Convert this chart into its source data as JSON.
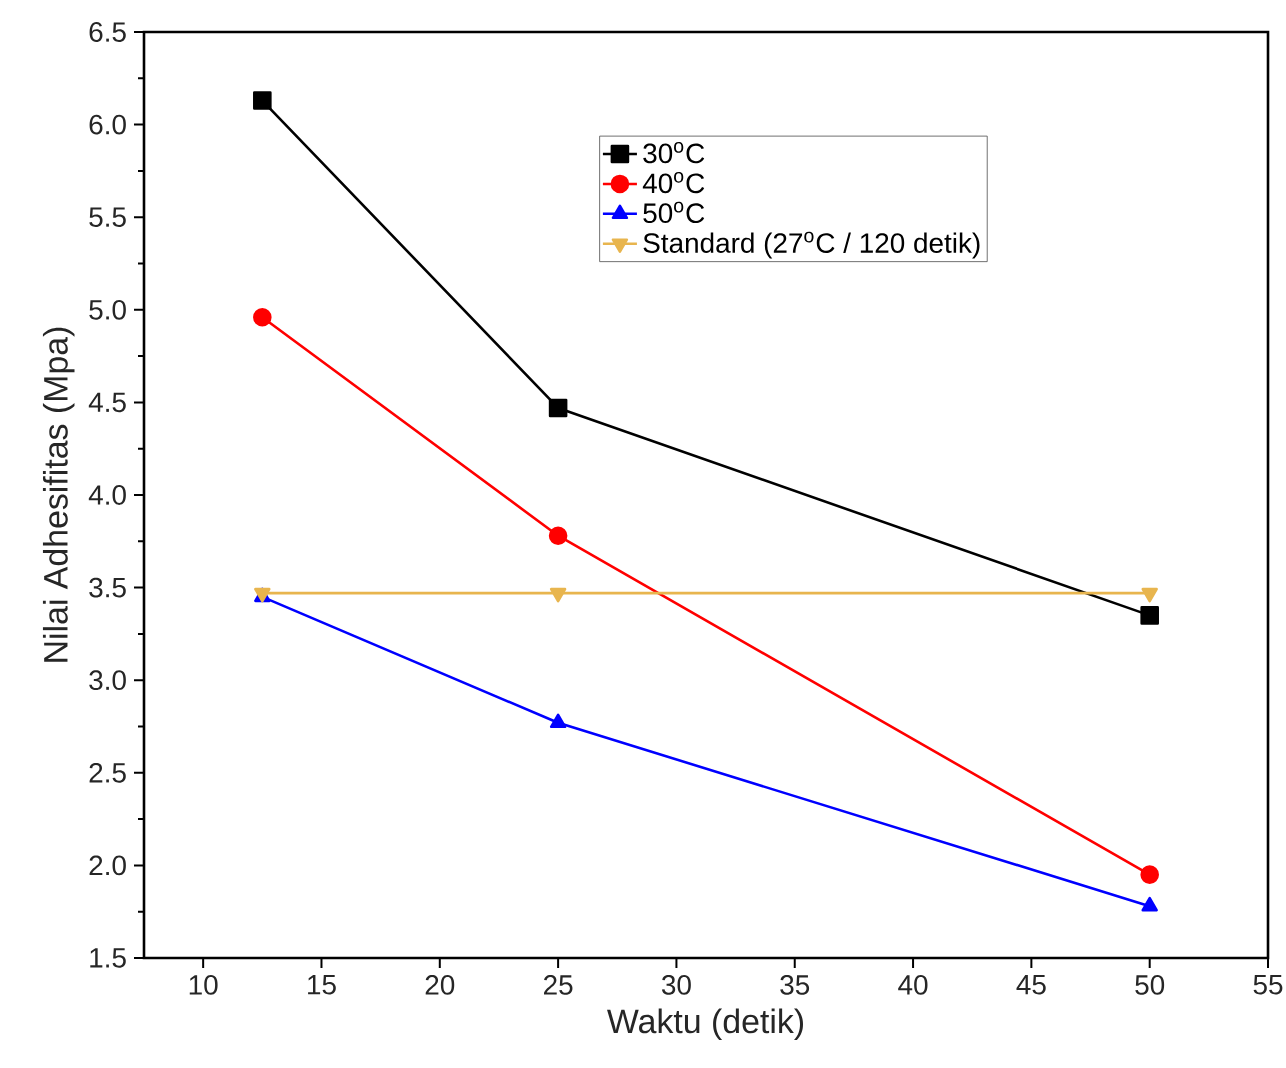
{
  "chart_data": {
    "type": "line",
    "xlabel": "Waktu (detik)",
    "ylabel": "Nilai Adhesifitas (Mpa)",
    "x": [
      12.5,
      25,
      50
    ],
    "series": [
      {
        "name": "30$^{o}$C",
        "color": "#000000",
        "marker": "square",
        "values": [
          6.13,
          4.47,
          3.35
        ]
      },
      {
        "name": "40$^{o}$C",
        "color": "#ff0000",
        "marker": "circle",
        "values": [
          4.96,
          3.78,
          1.95
        ]
      },
      {
        "name": "50$^{o}$C",
        "color": "#0000ff",
        "marker": "triangle",
        "values": [
          3.45,
          2.77,
          1.78
        ]
      },
      {
        "name": "Standard (27$^{o}$C / 120 detik)",
        "color": "#e8b54e",
        "marker": "triangle-down",
        "values": [
          3.47,
          3.47,
          3.47
        ]
      }
    ],
    "xlim": [
      7.5,
      55
    ],
    "ylim": [
      1.5,
      6.5
    ],
    "xticks": [
      10,
      15,
      20,
      25,
      30,
      35,
      40,
      45,
      50,
      55
    ],
    "yticks": [
      1.5,
      {
        "value": 2,
        "label": "2.0"
      },
      2.5,
      {
        "value": 3,
        "label": "3.0"
      },
      3.5,
      {
        "value": 4,
        "label": "4.0"
      },
      4.5,
      {
        "value": 5,
        "label": "5.0"
      },
      5.5,
      {
        "value": 6,
        "label": "6.0"
      },
      6.5
    ],
    "legend": "top right",
    "grid": false,
    "line_style": "solid"
  }
}
